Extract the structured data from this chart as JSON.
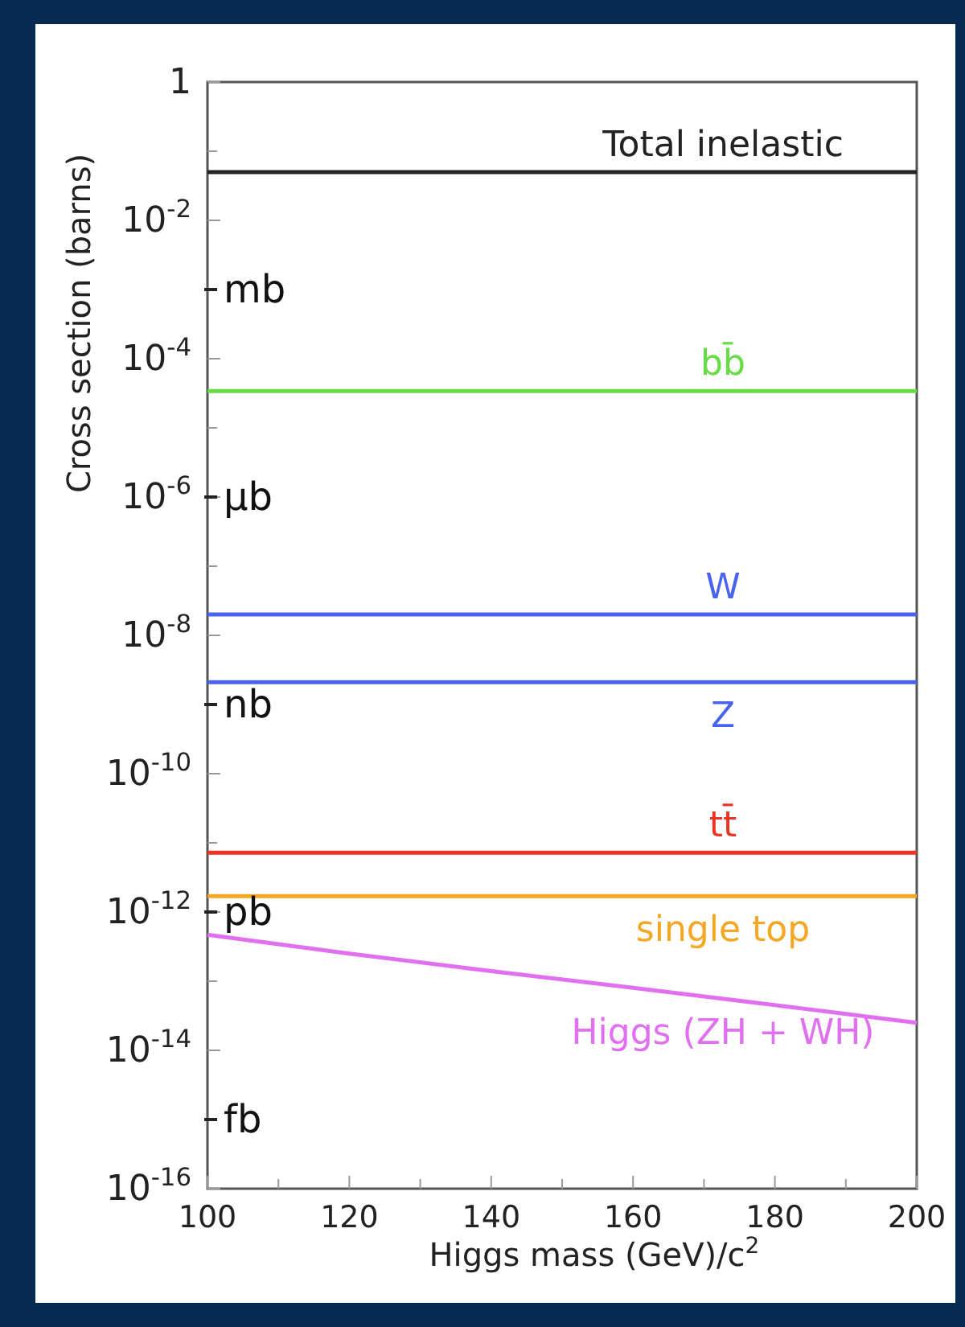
{
  "chart_data": {
    "type": "line",
    "xlabel": "Higgs mass (GeV)/c$^{2}$",
    "ylabel": "Cross section (barns)",
    "log": "y",
    "grid": false,
    "marker": "none",
    "line_style": "solid",
    "xlim": [
      100,
      200
    ],
    "xticks": [
      100,
      {
        "value": 110,
        "label": null
      },
      120,
      {
        "value": 130,
        "label": null
      },
      140,
      {
        "value": 150,
        "label": null
      },
      160,
      {
        "value": 170,
        "label": null
      },
      180,
      {
        "value": 190,
        "label": null
      },
      200
    ],
    "ylim": [
      1e-16,
      1
    ],
    "yticks": [
      {
        "value": 1,
        "label": "1"
      },
      {
        "value": 0.1,
        "label": null
      },
      {
        "value": 0.01,
        "label": "10$^{-2}$"
      },
      {
        "value": 0.001,
        "label": null
      },
      {
        "value": 0.0001,
        "label": "10$^{-4}$"
      },
      {
        "value": 1e-05,
        "label": null
      },
      {
        "value": 1e-06,
        "label": "10$^{-6}$"
      },
      {
        "value": 1e-07,
        "label": null
      },
      {
        "value": 1e-08,
        "label": "10$^{-8}$"
      },
      {
        "value": 1e-09,
        "label": null
      },
      {
        "value": 1e-10,
        "label": "10$^{-10}$"
      },
      {
        "value": 1e-11,
        "label": null
      },
      {
        "value": 1e-12,
        "label": "10$^{-12}$"
      },
      {
        "value": 1e-13,
        "label": null
      },
      {
        "value": 1e-14,
        "label": "10$^{-14}$"
      },
      {
        "value": 1e-15,
        "label": null
      },
      {
        "value": 1e-16,
        "label": "10$^{-16}$"
      }
    ],
    "x": [
      100,
      200
    ],
    "annotations": [
      "mb",
      "μb",
      "nb",
      "pb",
      "fb"
    ],
    "series": [
      {
        "name": "Total inelastic",
        "color": "#222222",
        "values": [
          0.05,
          0.05
        ]
      },
      {
        "name": "bb̄",
        "color": "#66dd44",
        "values": [
          3.4e-05,
          3.4e-05
        ]
      },
      {
        "name": "W",
        "color": "#4a63ee",
        "values": [
          2e-08,
          2e-08
        ]
      },
      {
        "name": "Z",
        "color": "#4a63ee",
        "values": [
          2.1e-09,
          2.1e-09
        ]
      },
      {
        "name": "tt̄",
        "color": "#ee3322",
        "values": [
          7.2e-12,
          7.2e-12
        ]
      },
      {
        "name": "single top",
        "color": "#f5a623",
        "values": [
          1.7e-12,
          1.7e-12
        ]
      },
      {
        "name": "Higgs (ZH + WH)",
        "color": "#e070f0",
        "x": [
          100,
          120,
          140,
          160,
          180,
          200
        ],
        "values": [
          4.7e-13,
          2.5e-13,
          1.4e-13,
          8e-14,
          4.5e-14,
          2.5e-14
        ]
      }
    ]
  }
}
